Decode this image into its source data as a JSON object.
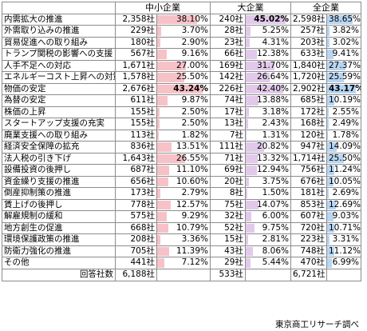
{
  "headers": [
    "",
    "中小企業",
    "大企業",
    "全企業"
  ],
  "colors": {
    "sme_bar": "#f7c1c8",
    "large_bar": "#e2c9ea",
    "all_bar": "#b6d6f3"
  },
  "rows": [
    {
      "label": "内需拡大の推進",
      "sme_n": "2,358社",
      "sme_pct": "38.10%",
      "sme_v": 38.1,
      "large_n": "240社",
      "large_pct": "45.02%",
      "large_v": 45.02,
      "all_n": "2,598社",
      "all_pct": "38.65%",
      "all_v": 38.65,
      "bold_large": true
    },
    {
      "label": "外需取り込みの推進",
      "sme_n": "229社",
      "sme_pct": "3.70%",
      "sme_v": 3.7,
      "large_n": "28社",
      "large_pct": "5.25%",
      "large_v": 5.25,
      "all_n": "257社",
      "all_pct": "3.82%",
      "all_v": 3.82
    },
    {
      "label": "貿易促進への取り組み",
      "sme_n": "180社",
      "sme_pct": "2.90%",
      "sme_v": 2.9,
      "large_n": "23社",
      "large_pct": "4.31%",
      "large_v": 4.31,
      "all_n": "203社",
      "all_pct": "3.02%",
      "all_v": 3.02
    },
    {
      "label": "トランプ関税の影響への支援",
      "sme_n": "567社",
      "sme_pct": "9.16%",
      "sme_v": 9.16,
      "large_n": "66社",
      "large_pct": "12.38%",
      "large_v": 12.38,
      "all_n": "633社",
      "all_pct": "9.41%",
      "all_v": 9.41
    },
    {
      "label": "人手不足への対応",
      "sme_n": "1,671社",
      "sme_pct": "27.00%",
      "sme_v": 27.0,
      "large_n": "169社",
      "large_pct": "31.70%",
      "large_v": 31.7,
      "all_n": "1,840社",
      "all_pct": "27.37%",
      "all_v": 27.37
    },
    {
      "label": "エネルギーコスト上昇への対策",
      "sme_n": "1,578社",
      "sme_pct": "25.50%",
      "sme_v": 25.5,
      "large_n": "142社",
      "large_pct": "26.64%",
      "large_v": 26.64,
      "all_n": "1,720社",
      "all_pct": "25.59%",
      "all_v": 25.59
    },
    {
      "label": "物価の安定",
      "sme_n": "2,676社",
      "sme_pct": "43.24%",
      "sme_v": 43.24,
      "large_n": "226社",
      "large_pct": "42.40%",
      "large_v": 42.4,
      "all_n": "2,902社",
      "all_pct": "43.17%",
      "all_v": 43.17,
      "bold_sme": true,
      "bold_all": true
    },
    {
      "label": "為替の安定",
      "sme_n": "611社",
      "sme_pct": "9.87%",
      "sme_v": 9.87,
      "large_n": "74社",
      "large_pct": "13.88%",
      "large_v": 13.88,
      "all_n": "685社",
      "all_pct": "10.19%",
      "all_v": 10.19
    },
    {
      "label": "株価の上昇",
      "sme_n": "155社",
      "sme_pct": "2.50%",
      "sme_v": 2.5,
      "large_n": "17社",
      "large_pct": "3.18%",
      "large_v": 3.18,
      "all_n": "172社",
      "all_pct": "2.55%",
      "all_v": 2.55
    },
    {
      "label": "スタートアップ支援の充実",
      "sme_n": "155社",
      "sme_pct": "2.50%",
      "sme_v": 2.5,
      "large_n": "13社",
      "large_pct": "2.43%",
      "large_v": 2.43,
      "all_n": "168社",
      "all_pct": "2.49%",
      "all_v": 2.49
    },
    {
      "label": "廃業支援への取り組み",
      "sme_n": "113社",
      "sme_pct": "1.82%",
      "sme_v": 1.82,
      "large_n": "7社",
      "large_pct": "1.31%",
      "large_v": 1.31,
      "all_n": "120社",
      "all_pct": "1.78%",
      "all_v": 1.78
    },
    {
      "label": "経済安全保障の拡充",
      "sme_n": "836社",
      "sme_pct": "13.51%",
      "sme_v": 13.51,
      "large_n": "111社",
      "large_pct": "20.82%",
      "large_v": 20.82,
      "all_n": "947社",
      "all_pct": "14.09%",
      "all_v": 14.09
    },
    {
      "label": "法人税の引き下げ",
      "sme_n": "1,643社",
      "sme_pct": "26.55%",
      "sme_v": 26.55,
      "large_n": "71社",
      "large_pct": "13.32%",
      "large_v": 13.32,
      "all_n": "1,714社",
      "all_pct": "25.50%",
      "all_v": 25.5
    },
    {
      "label": "設備投資の後押し",
      "sme_n": "687社",
      "sme_pct": "11.10%",
      "sme_v": 11.1,
      "large_n": "69社",
      "large_pct": "12.94%",
      "large_v": 12.94,
      "all_n": "756社",
      "all_pct": "11.24%",
      "all_v": 11.24
    },
    {
      "label": "資金繰り支援の推進",
      "sme_n": "656社",
      "sme_pct": "10.60%",
      "sme_v": 10.6,
      "large_n": "20社",
      "large_pct": "3.75%",
      "large_v": 3.75,
      "all_n": "676社",
      "all_pct": "10.05%",
      "all_v": 10.05
    },
    {
      "label": "倒産抑制策の推進",
      "sme_n": "173社",
      "sme_pct": "2.79%",
      "sme_v": 2.79,
      "large_n": "8社",
      "large_pct": "1.50%",
      "large_v": 1.5,
      "all_n": "181社",
      "all_pct": "2.69%",
      "all_v": 2.69
    },
    {
      "label": "賃上げの後押し",
      "sme_n": "778社",
      "sme_pct": "12.57%",
      "sme_v": 12.57,
      "large_n": "75社",
      "large_pct": "14.07%",
      "large_v": 14.07,
      "all_n": "853社",
      "all_pct": "12.69%",
      "all_v": 12.69
    },
    {
      "label": "解雇規制の緩和",
      "sme_n": "575社",
      "sme_pct": "9.29%",
      "sme_v": 9.29,
      "large_n": "32社",
      "large_pct": "6.00%",
      "large_v": 6.0,
      "all_n": "607社",
      "all_pct": "9.03%",
      "all_v": 9.03
    },
    {
      "label": "地方創生の促進",
      "sme_n": "668社",
      "sme_pct": "10.79%",
      "sme_v": 10.79,
      "large_n": "52社",
      "large_pct": "9.75%",
      "large_v": 9.75,
      "all_n": "720社",
      "all_pct": "10.71%",
      "all_v": 10.71
    },
    {
      "label": "環境保護政策の推進",
      "sme_n": "208社",
      "sme_pct": "3.36%",
      "sme_v": 3.36,
      "large_n": "15社",
      "large_pct": "2.81%",
      "large_v": 2.81,
      "all_n": "223社",
      "all_pct": "3.31%",
      "all_v": 3.31
    },
    {
      "label": "防衛力強化の推進",
      "sme_n": "705社",
      "sme_pct": "11.39%",
      "sme_v": 11.39,
      "large_n": "43社",
      "large_pct": "8.06%",
      "large_v": 8.06,
      "all_n": "748社",
      "all_pct": "11.12%",
      "all_v": 11.12
    },
    {
      "label": "その他",
      "sme_n": "441社",
      "sme_pct": "7.12%",
      "sme_v": 7.12,
      "large_n": "29社",
      "large_pct": "5.44%",
      "large_v": 5.44,
      "all_n": "470社",
      "all_pct": "6.99%",
      "all_v": 6.99
    }
  ],
  "total": {
    "label": "回答社数",
    "sme_n": "6,188社",
    "large_n": "533社",
    "all_n": "6,721社"
  },
  "source": "東京商工リサーチ調べ"
}
